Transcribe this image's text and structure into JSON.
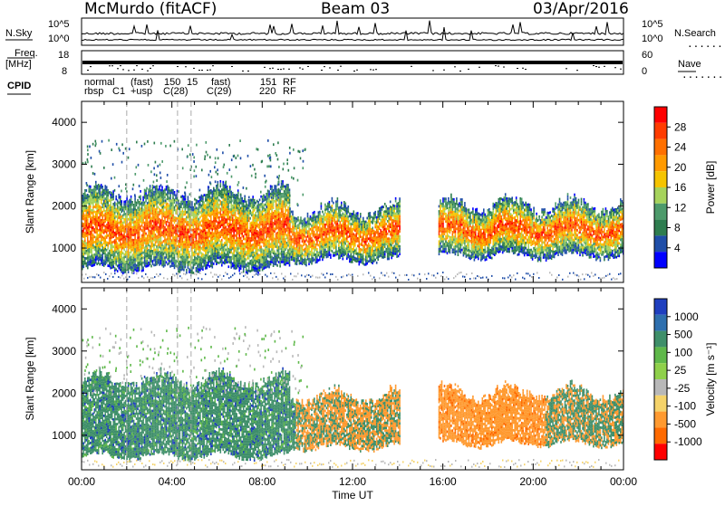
{
  "header": {
    "station": "McMurdo (fitACF)",
    "beam": "Beam 03",
    "date": "03/Apr/2016"
  },
  "strip": {
    "nsky_label": "N.Sky",
    "nsearch_label": "N.Search",
    "noise_ticks_left": [
      "10^5",
      "10^0"
    ],
    "noise_ticks_right": [
      "10^5",
      "10^0"
    ],
    "freq_label": "Freq.",
    "freq_unit": "[MHz]",
    "freq_ticks": [
      "18",
      "8"
    ],
    "nave_label": "Nave",
    "nave_ticks": [
      "60",
      "0"
    ],
    "cpid_label": "CPID",
    "cpid_row1": [
      "normal",
      "(fast)",
      "150",
      "15",
      "fast)",
      "151",
      "RF"
    ],
    "cpid_row2": [
      "rbsp",
      "C1",
      "+usp",
      "C(28)",
      "C(29)",
      "220",
      "RF"
    ],
    "dot_marks": "......."
  },
  "chart_data": [
    {
      "type": "heatmap",
      "panel": "power",
      "ylabel": "Slant Range [km]",
      "xlabel": "",
      "y_ticks": [
        "4000",
        "3000",
        "2000",
        "1000"
      ],
      "ylim": [
        180,
        4500
      ],
      "colorbar_label": "Power [dB]",
      "colorbar_ticks": [
        "28",
        "24",
        "20",
        "16",
        "12",
        "8",
        "4"
      ],
      "colorbar_colors": [
        "#ff0000",
        "#ff3c00",
        "#ff7000",
        "#ff9a00",
        "#f5c400",
        "#a6d35c",
        "#4d9a6b",
        "#2e7d4f",
        "#1f4ea8",
        "#0000ff"
      ],
      "mode_change_lines_ut": [
        2.0,
        4.25,
        4.85
      ],
      "coverage": [
        {
          "start_ut": 0.0,
          "end_ut": 9.2,
          "y_from": 500,
          "y_to": 2300
        },
        {
          "start_ut": 9.2,
          "end_ut": 14.1,
          "y_from": 700,
          "y_to": 1900
        },
        {
          "start_ut": 15.8,
          "end_ut": 24.0,
          "y_from": 800,
          "y_to": 2000
        }
      ]
    },
    {
      "type": "heatmap",
      "panel": "velocity",
      "ylabel": "Slant Range [km]",
      "xlabel": "Time UT",
      "x_ticks": [
        "00:00",
        "04:00",
        "08:00",
        "12:00",
        "16:00",
        "20:00",
        "00:00"
      ],
      "x_tick_values_ut": [
        0,
        4,
        8,
        12,
        16,
        20,
        24
      ],
      "y_ticks": [
        "4000",
        "3000",
        "2000",
        "1000"
      ],
      "ylim": [
        180,
        4500
      ],
      "colorbar_label": "Velocity [m s⁻¹]",
      "colorbar_ticks": [
        "1000",
        "500",
        "100",
        "25",
        "-25",
        "-100",
        "-500",
        "-1000"
      ],
      "colorbar_colors": [
        "#1f3fbf",
        "#2e6fae",
        "#3f8f6a",
        "#5fb84a",
        "#8fd04a",
        "#b8b8b8",
        "#f5d36a",
        "#ff9a30",
        "#ff6a00",
        "#ff0000"
      ],
      "mode_change_lines_ut": [
        2.0,
        4.25,
        4.85
      ],
      "coverage": [
        {
          "start_ut": 0.0,
          "end_ut": 9.2,
          "y_from": 500,
          "y_to": 2300
        },
        {
          "start_ut": 9.2,
          "end_ut": 14.1,
          "y_from": 700,
          "y_to": 1900
        },
        {
          "start_ut": 15.8,
          "end_ut": 24.0,
          "y_from": 800,
          "y_to": 2000
        }
      ]
    }
  ]
}
